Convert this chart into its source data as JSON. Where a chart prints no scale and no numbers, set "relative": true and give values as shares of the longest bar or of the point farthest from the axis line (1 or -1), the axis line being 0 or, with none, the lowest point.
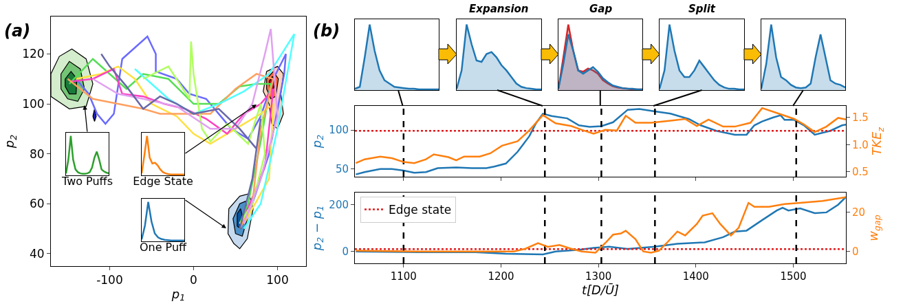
{
  "chart_data": [
    {
      "type": "line",
      "xlabel": "p$_{1}$",
      "ylabel": "p$_{2}$",
      "annotations": [
        "(a)"
      ],
      "xlim": [
        -170,
        134
      ],
      "ylim": [
        35,
        135
      ],
      "xticks": [
        -100,
        0,
        100
      ],
      "yticks": [
        40,
        60,
        80,
        100,
        120
      ],
      "legend": false,
      "marker": "none",
      "series": [
        {
          "type": "area",
          "color": "#d4edcc",
          "x": [
            -170,
            -160,
            -145,
            -128,
            -120,
            -128,
            -148,
            -170,
            -170
          ],
          "values": [
            112,
            119,
            122,
            118,
            108,
            99,
            98,
            103,
            112
          ]
        },
        {
          "type": "area",
          "color": "#74c476",
          "x": [
            -158,
            -148,
            -135,
            -130,
            -138,
            -150,
            -158,
            -158
          ],
          "values": [
            112,
            117,
            114,
            106,
            101,
            102,
            106,
            112
          ]
        },
        {
          "type": "area",
          "color": "#1a7a3a",
          "x": [
            -153,
            -146,
            -139,
            -140,
            -148,
            -153,
            -153
          ],
          "values": [
            110,
            113,
            110,
            104,
            104,
            107,
            110
          ]
        },
        {
          "type": "area",
          "color": "#fcd2bc",
          "x": [
            87,
            100,
            107,
            104,
            107,
            100,
            93,
            90,
            83,
            87
          ],
          "values": [
            113,
            115,
            112,
            104,
            96,
            90,
            92,
            100,
            105,
            113
          ]
        },
        {
          "type": "area",
          "color": "#f96a48",
          "x": [
            87,
            95,
            101,
            98,
            92,
            87,
            87
          ],
          "values": [
            110,
            113,
            110,
            103,
            102,
            106,
            110
          ]
        },
        {
          "type": "area",
          "color": "#a81414",
          "x": [
            90,
            94,
            97,
            94,
            91,
            90
          ],
          "values": [
            109,
            111,
            108,
            105,
            106,
            109
          ]
        },
        {
          "type": "area",
          "color": "#c6dbef",
          "x": [
            48,
            41,
            42,
            55,
            66,
            71,
            64,
            55,
            48
          ],
          "values": [
            44,
            48,
            58,
            63,
            64,
            58,
            46,
            42,
            44
          ]
        },
        {
          "type": "area",
          "color": "#4a90c8",
          "x": [
            50,
            47,
            55,
            62,
            65,
            58,
            50
          ],
          "values": [
            48,
            54,
            60,
            61,
            55,
            47,
            48
          ]
        },
        {
          "type": "area",
          "color": "#08519c",
          "x": [
            52,
            52,
            56,
            59,
            56,
            52
          ],
          "values": [
            51,
            56,
            58,
            54,
            50,
            51
          ]
        },
        {
          "type": "area",
          "color": "#2020c0",
          "x": [
            -120,
            -118,
            -116,
            -118,
            -120
          ],
          "values": [
            95,
            98,
            95,
            93,
            95
          ]
        },
        {
          "color": "#6a6aff",
          "x": [
            -140,
            -125,
            -115,
            -105,
            -95,
            -85,
            -55,
            -45,
            -45,
            -20,
            -5,
            15,
            35,
            45,
            65,
            80,
            95,
            110,
            108,
            90,
            70,
            55
          ],
          "values": [
            110,
            104,
            96,
            92,
            96,
            118,
            127,
            120,
            113,
            110,
            104,
            102,
            94,
            90,
            86,
            95,
            110,
            120,
            112,
            80,
            60,
            50
          ]
        },
        {
          "color": "#55dd55",
          "x": [
            -148,
            -120,
            -100,
            -80,
            -60,
            -30,
            0,
            30,
            55,
            75,
            92,
            80,
            65,
            55
          ],
          "values": [
            108,
            118,
            112,
            106,
            112,
            110,
            100,
            100,
            107,
            108,
            108,
            85,
            60,
            52
          ]
        },
        {
          "color": "#ffe040",
          "x": [
            -140,
            -110,
            -90,
            -70,
            -50,
            -20,
            0,
            20,
            50,
            80,
            95,
            90,
            60
          ],
          "values": [
            110,
            112,
            115,
            110,
            100,
            95,
            88,
            84,
            90,
            96,
            100,
            70,
            52
          ]
        },
        {
          "color": "#ff40c0",
          "x": [
            -145,
            -120,
            -95,
            -85,
            -60,
            -35,
            -10,
            15,
            40,
            60,
            80,
            95,
            85,
            60
          ],
          "values": [
            109,
            110,
            114,
            104,
            103,
            100,
            98,
            94,
            88,
            96,
            100,
            106,
            75,
            54
          ]
        },
        {
          "color": "#ffa060",
          "x": [
            -150,
            -120,
            -90,
            -60,
            -40,
            -10,
            20,
            50,
            75,
            95,
            80,
            70,
            55
          ],
          "values": [
            110,
            102,
            100,
            98,
            96,
            96,
            96,
            106,
            112,
            110,
            90,
            60,
            50
          ]
        },
        {
          "color": "#50ffff",
          "x": [
            -70,
            -50,
            -30,
            0,
            30,
            60,
            90,
            120,
            100,
            80,
            60
          ],
          "values": [
            114,
            108,
            102,
            96,
            100,
            105,
            112,
            128,
            90,
            60,
            50
          ]
        },
        {
          "color": "#b0ff60",
          "x": [
            -60,
            -30,
            -5,
            -3,
            0,
            10,
            20,
            40,
            65,
            80,
            85,
            70,
            55
          ],
          "values": [
            110,
            115,
            102,
            125,
            112,
            90,
            85,
            92,
            84,
            100,
            80,
            60,
            52
          ]
        },
        {
          "color": "#e0a0f0",
          "x": [
            -120,
            -90,
            -60,
            -20,
            20,
            50,
            70,
            85,
            92,
            100,
            80,
            60
          ],
          "values": [
            110,
            104,
            102,
            99,
            90,
            90,
            100,
            120,
            130,
            95,
            70,
            52
          ]
        },
        {
          "color": "#6868a8",
          "x": [
            -110,
            -100,
            -80,
            -60,
            -40,
            -20,
            0,
            30,
            55,
            75,
            80,
            70,
            55
          ],
          "values": [
            120,
            115,
            107,
            98,
            103,
            100,
            96,
            98,
            90,
            82,
            94,
            70,
            50
          ]
        }
      ]
    },
    {
      "type": "line",
      "relative": true,
      "xlabel": "Two Puffs",
      "marker": "none",
      "categories": [
        null,
        null,
        null,
        null,
        null,
        null,
        null,
        null,
        null,
        null,
        null,
        null,
        null,
        null,
        null,
        null,
        null,
        null,
        null
      ],
      "series": [
        {
          "color": "#2ca02c",
          "values": [
            0.05,
            0.4,
            1,
            0.4,
            0.15,
            0.08,
            0.05,
            0.04,
            0.04,
            0.05,
            0.08,
            0.2,
            0.45,
            0.6,
            0.4,
            0.15,
            0.1,
            0.07,
            0.05
          ]
        }
      ]
    },
    {
      "type": "line",
      "relative": true,
      "xlabel": "Edge State",
      "marker": "none",
      "categories": [
        null,
        null,
        null,
        null,
        null,
        null,
        null,
        null,
        null,
        null,
        null,
        null,
        null,
        null,
        null,
        null,
        null
      ],
      "series": [
        {
          "color": "#ff7f0e",
          "values": [
            0.05,
            0.5,
            1,
            0.45,
            0.3,
            0.32,
            0.25,
            0.15,
            0.08,
            0.05,
            0.03,
            0.02,
            0.02,
            0.02,
            0.02,
            0.02,
            0.02
          ]
        }
      ]
    },
    {
      "type": "line",
      "relative": true,
      "xlabel": "One Puff",
      "marker": "none",
      "categories": [
        null,
        null,
        null,
        null,
        null,
        null,
        null,
        null,
        null,
        null,
        null,
        null,
        null,
        null
      ],
      "series": [
        {
          "color": "#1f77b4",
          "values": [
            0.05,
            0.4,
            1,
            0.5,
            0.2,
            0.1,
            0.06,
            0.04,
            0.03,
            0.02,
            0.02,
            0.02,
            0.02,
            0.02
          ]
        }
      ]
    },
    {
      "type": "area",
      "relative": true,
      "annotations": [
        "(b)"
      ],
      "marker": "none",
      "categories": [
        null,
        null,
        null,
        null,
        null,
        null,
        null,
        null,
        null,
        null,
        null,
        null,
        null,
        null,
        null,
        null,
        null,
        null
      ],
      "series": [
        {
          "color": "#1f77b4",
          "values": [
            0.02,
            0.05,
            0.5,
            1,
            0.6,
            0.3,
            0.15,
            0.1,
            0.05,
            0.04,
            0.03,
            0.02,
            0.02,
            0.01,
            0.01,
            0.01,
            0.01,
            0.01
          ]
        }
      ]
    },
    {
      "type": "area",
      "relative": true,
      "title": "Expansion",
      "marker": "none",
      "categories": [
        null,
        null,
        null,
        null,
        null,
        null,
        null,
        null,
        null,
        null,
        null,
        null,
        null,
        null,
        null,
        null,
        null,
        null
      ],
      "series": [
        {
          "color": "#1f77b4",
          "values": [
            0.02,
            0.3,
            1,
            0.7,
            0.45,
            0.43,
            0.55,
            0.58,
            0.5,
            0.38,
            0.3,
            0.2,
            0.1,
            0.05,
            0.03,
            0.02,
            0.01,
            0.01
          ]
        }
      ]
    },
    {
      "type": "area",
      "relative": true,
      "title": "Gap",
      "marker": "none",
      "categories": [
        null,
        null,
        null,
        null,
        null,
        null,
        null,
        null,
        null,
        null,
        null,
        null,
        null,
        null,
        null,
        null,
        null,
        null
      ],
      "series": [
        {
          "color": "#d62728",
          "values": [
            0.02,
            0.5,
            1,
            0.6,
            0.3,
            0.28,
            0.33,
            0.3,
            0.25,
            0.15,
            0.1,
            0.06,
            0.04,
            0.03,
            0.02,
            0.01,
            0.01,
            0.01
          ]
        },
        {
          "color": "#1f77b4",
          "values": [
            0.02,
            0.4,
            0.85,
            0.6,
            0.3,
            0.25,
            0.3,
            0.35,
            0.28,
            0.18,
            0.12,
            0.07,
            0.05,
            0.03,
            0.02,
            0.02,
            0.01,
            0.01
          ]
        }
      ]
    },
    {
      "type": "area",
      "relative": true,
      "title": "Split",
      "marker": "none",
      "categories": [
        null,
        null,
        null,
        null,
        null,
        null,
        null,
        null,
        null,
        null,
        null,
        null,
        null,
        null,
        null,
        null,
        null,
        null
      ],
      "series": [
        {
          "color": "#1f77b4",
          "values": [
            0.02,
            0.3,
            1,
            0.6,
            0.3,
            0.2,
            0.2,
            0.3,
            0.45,
            0.35,
            0.25,
            0.15,
            0.08,
            0.04,
            0.02,
            0.02,
            0.01,
            0.01
          ]
        }
      ]
    },
    {
      "type": "area",
      "relative": true,
      "marker": "none",
      "categories": [
        null,
        null,
        null,
        null,
        null,
        null,
        null,
        null,
        null,
        null,
        null,
        null,
        null,
        null,
        null,
        null,
        null,
        null
      ],
      "series": [
        {
          "color": "#1f77b4",
          "values": [
            0.02,
            0.4,
            1,
            0.5,
            0.2,
            0.15,
            0.08,
            0.04,
            0.03,
            0.04,
            0.1,
            0.5,
            0.85,
            0.5,
            0.15,
            0.1,
            0.08,
            0.04
          ]
        }
      ]
    },
    {
      "type": "line",
      "ylabel": "p$_{2}$",
      "y2label": "TKE$_{z}$",
      "xlim": [
        1050,
        1554
      ],
      "ylim": [
        40,
        131
      ],
      "y2lim": [
        0.41,
        1.71
      ],
      "xticks": [
        1100,
        1200,
        1300,
        1400,
        1500
      ],
      "yticks": [
        50,
        100
      ],
      "y2ticks": [
        0.5,
        {
          "value": 1,
          "label": "1.0"
        },
        1.5
      ],
      "tick_labels": "y",
      "legend": false,
      "marker": "none",
      "line_style": "solid",
      "ref_lines": [
        {
          "axis": "y",
          "value": 99,
          "color": "#e31a1c",
          "line_style": "dotted"
        },
        {
          "axis": "x",
          "value": 1100,
          "color": "#000000",
          "line_style": "dashed"
        },
        {
          "axis": "x",
          "value": 1245,
          "color": "#000000",
          "line_style": "dashed"
        },
        {
          "axis": "x",
          "value": 1303,
          "color": "#000000",
          "line_style": "dashed"
        },
        {
          "axis": "x",
          "value": 1358,
          "color": "#000000",
          "line_style": "dashed"
        },
        {
          "axis": "x",
          "value": 1503,
          "color": "#000000",
          "line_style": "dashed"
        }
      ],
      "series": [
        {
          "color": "#1f77b4",
          "x": [
            1051,
            1060,
            1076,
            1088,
            1100,
            1111,
            1123,
            1135,
            1154,
            1170,
            1185,
            1193,
            1205,
            1217,
            1229,
            1236,
            1243,
            1252,
            1268,
            1280,
            1291,
            1303,
            1315,
            1330,
            1342,
            1358,
            1374,
            1393,
            1405,
            1421,
            1440,
            1452,
            1460,
            1468,
            1479,
            1487,
            1491,
            1501,
            1511,
            1522,
            1538,
            1550,
            1554
          ],
          "values": [
            43,
            46,
            50,
            50,
            48,
            45,
            46,
            51,
            52,
            51,
            51,
            53,
            57,
            72,
            92,
            109,
            121,
            118,
            115,
            106,
            104,
            105,
            110,
            126,
            127,
            124,
            121,
            114,
            106,
            99,
            94,
            94,
            106,
            111,
            116,
            119,
            113,
            113,
            106,
            94,
            99,
            106,
            107
          ]
        },
        {
          "color": "#ff7f0e",
          "axis": "y2",
          "x": [
            1051,
            1060,
            1076,
            1088,
            1100,
            1111,
            1123,
            1131,
            1146,
            1154,
            1162,
            1178,
            1189,
            1201,
            1217,
            1229,
            1243,
            1256,
            1272,
            1283,
            1295,
            1307,
            1319,
            1328,
            1338,
            1354,
            1374,
            1389,
            1401,
            1413,
            1428,
            1440,
            1456,
            1468,
            1483,
            1501,
            1511,
            1522,
            1534,
            1546,
            1554
          ],
          "values": [
            0.66,
            0.73,
            0.78,
            0.75,
            0.68,
            0.66,
            0.73,
            0.82,
            0.77,
            0.71,
            0.78,
            0.78,
            0.84,
            0.98,
            1.06,
            1.26,
            1.54,
            1.39,
            1.34,
            1.27,
            1.2,
            1.27,
            1.26,
            1.53,
            1.4,
            1.4,
            1.44,
            1.47,
            1.34,
            1.46,
            1.33,
            1.33,
            1.4,
            1.67,
            1.58,
            1.47,
            1.37,
            1.23,
            1.33,
            1.49,
            1.46
          ]
        }
      ]
    },
    {
      "type": "line",
      "xlabel": "t[D/Ū]",
      "ylabel": "p$_{2}$ − p$_{1}$",
      "y2label": "w$_{gap}$",
      "xlim": [
        1050,
        1554
      ],
      "ylim": [
        -51,
        252
      ],
      "y2lim": [
        -6.1,
        30.2
      ],
      "xticks": [
        1100,
        1200,
        1300,
        1400,
        1500
      ],
      "yticks": [
        0,
        200
      ],
      "y2ticks": [
        0,
        20
      ],
      "legend": "top left",
      "marker": "none",
      "line_style": "solid",
      "ref_lines": [
        {
          "axis": "y",
          "value": 10,
          "label": "Edge state",
          "color": "#e31a1c",
          "line_style": "dotted"
        },
        {
          "axis": "x",
          "value": 1100,
          "color": "#000000",
          "line_style": "dashed"
        },
        {
          "axis": "x",
          "value": 1245,
          "color": "#000000",
          "line_style": "dashed"
        },
        {
          "axis": "x",
          "value": 1303,
          "color": "#000000",
          "line_style": "dashed"
        },
        {
          "axis": "x",
          "value": 1358,
          "color": "#000000",
          "line_style": "dashed"
        },
        {
          "axis": "x",
          "value": 1503,
          "color": "#000000",
          "line_style": "dashed"
        }
      ],
      "series": [
        {
          "color": "#1f77b4",
          "x": [
            1051,
            1115,
            1174,
            1205,
            1243,
            1256,
            1280,
            1295,
            1311,
            1330,
            1358,
            1381,
            1409,
            1428,
            1440,
            1452,
            1468,
            1483,
            1489,
            1495,
            1507,
            1522,
            1534,
            1546,
            1554
          ],
          "values": [
            0,
            -3,
            -3,
            -10,
            -13,
            0,
            7,
            15,
            20,
            11,
            20,
            33,
            39,
            61,
            85,
            89,
            134,
            175,
            187,
            175,
            184,
            164,
            167,
            200,
            233
          ]
        },
        {
          "color": "#ff7f0e",
          "axis": "y2",
          "x": [
            1051,
            1115,
            1213,
            1225,
            1238,
            1248,
            1260,
            1272,
            1283,
            1297,
            1307,
            1315,
            1323,
            1328,
            1338,
            1346,
            1354,
            1362,
            1370,
            1381,
            1389,
            1401,
            1407,
            1417,
            1425,
            1436,
            1444,
            1454,
            1460,
            1475,
            1491,
            1507,
            1530,
            1554
          ],
          "values": [
            0.4,
            0,
            0,
            1.4,
            4.3,
            2.4,
            3.3,
            1.4,
            0,
            -0.6,
            4.3,
            8.6,
            9.2,
            10.6,
            6.3,
            0,
            -0.6,
            0.4,
            4.3,
            10.2,
            8.2,
            14.1,
            18.4,
            19.6,
            14.1,
            8.2,
            12.2,
            24.9,
            22.9,
            22.9,
            24.3,
            24.9,
            25.9,
            27.8
          ]
        }
      ]
    }
  ]
}
